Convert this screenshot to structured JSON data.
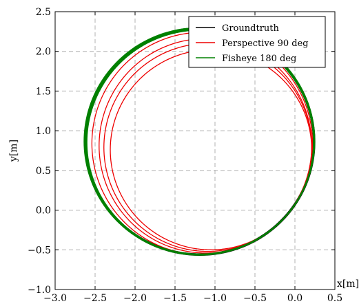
{
  "chart_data": {
    "type": "line",
    "title": "",
    "xlabel": "x[m]",
    "ylabel": "y[m]",
    "xlim": [
      -3.0,
      0.5
    ],
    "ylim": [
      -1.0,
      2.5
    ],
    "xticks": [
      "−3.0",
      "−2.5",
      "−2.0",
      "−1.5",
      "−1.0",
      "−0.5",
      "0.0",
      "0.5"
    ],
    "xtick_values": [
      -3.0,
      -2.5,
      -2.0,
      -1.5,
      -1.0,
      -0.5,
      0.0,
      0.5
    ],
    "yticks": [
      "−1.0",
      "−0.5",
      "0.0",
      "0.5",
      "1.0",
      "1.5",
      "2.0",
      "2.5"
    ],
    "ytick_values": [
      -1.0,
      -0.5,
      0.0,
      0.5,
      1.0,
      1.5,
      2.0,
      2.5
    ],
    "grid": true,
    "legend_position": "top-right",
    "series": [
      {
        "name": "Groundtruth",
        "color": "#000000",
        "shape": "loops",
        "loops": [
          {
            "cx": -1.19,
            "cy": 0.86,
            "rx": 1.43,
            "ry": 1.42,
            "dx": 0.0
          },
          {
            "cx": -1.19,
            "cy": 0.86,
            "rx": 1.44,
            "ry": 1.43,
            "dx": 0.0
          },
          {
            "cx": -1.19,
            "cy": 0.86,
            "rx": 1.42,
            "ry": 1.41,
            "dx": 0.0
          }
        ]
      },
      {
        "name": "Perspective 90 deg",
        "color": "#ee0000",
        "shape": "loops",
        "loops": [
          {
            "cx": -1.16,
            "cy": 0.84,
            "rx": 1.38,
            "ry": 1.4,
            "dx": 0.0
          },
          {
            "cx": -1.12,
            "cy": 0.81,
            "rx": 1.33,
            "ry": 1.35,
            "dx": 0.0
          },
          {
            "cx": -1.09,
            "cy": 0.79,
            "rx": 1.3,
            "ry": 1.31,
            "dx": 0.0
          },
          {
            "cx": -1.05,
            "cy": 0.76,
            "rx": 1.26,
            "ry": 1.26,
            "dx": 0.0
          }
        ]
      },
      {
        "name": "Fisheye 180 deg",
        "color": "#008000",
        "shape": "loops",
        "loops": [
          {
            "cx": -1.19,
            "cy": 0.86,
            "rx": 1.43,
            "ry": 1.42,
            "dx": 0.0
          },
          {
            "cx": -1.195,
            "cy": 0.865,
            "rx": 1.44,
            "ry": 1.43,
            "dx": 0.0
          },
          {
            "cx": -1.185,
            "cy": 0.855,
            "rx": 1.42,
            "ry": 1.415,
            "dx": 0.0
          },
          {
            "cx": -1.19,
            "cy": 0.87,
            "rx": 1.435,
            "ry": 1.425,
            "dx": 0.0
          }
        ]
      }
    ]
  }
}
